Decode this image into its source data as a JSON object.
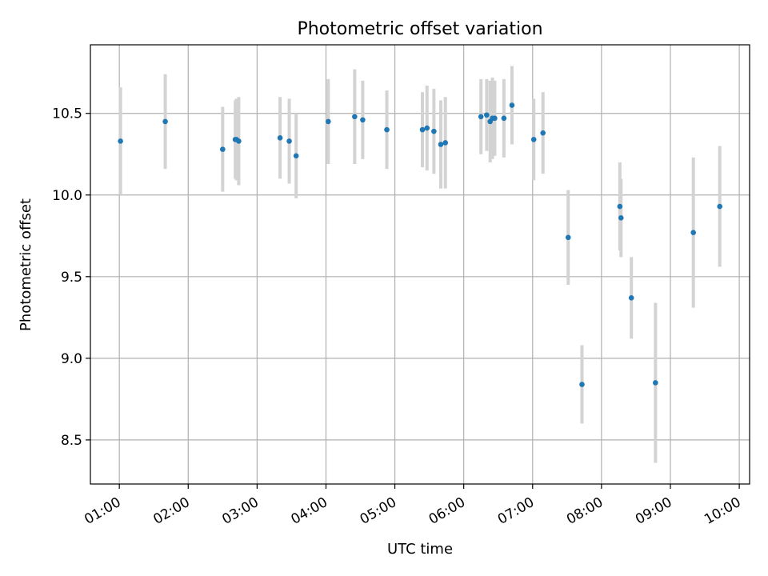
{
  "chart_data": {
    "type": "scatter",
    "title": "Photometric offset variation",
    "xlabel": "UTC time",
    "ylabel": "Photometric offset",
    "x_ticks": [
      "01:00",
      "02:00",
      "03:00",
      "04:00",
      "05:00",
      "06:00",
      "07:00",
      "08:00",
      "09:00",
      "10:00"
    ],
    "x_tick_hours": [
      1,
      2,
      3,
      4,
      5,
      6,
      7,
      8,
      9,
      10
    ],
    "xlim_hours": [
      0.58,
      10.15
    ],
    "y_ticks": [
      "8.5",
      "9.0",
      "9.5",
      "10.0",
      "10.5"
    ],
    "y_tick_values": [
      8.5,
      9.0,
      9.5,
      10.0,
      10.5
    ],
    "ylim": [
      8.23,
      10.92
    ],
    "grid": true,
    "colors": {
      "point": "#1f77b4",
      "errorbar": "#d3d3d3"
    },
    "points": [
      {
        "x": "01:01",
        "y": 10.33,
        "err": 0.33
      },
      {
        "x": "01:40",
        "y": 10.45,
        "err": 0.29
      },
      {
        "x": "02:30",
        "y": 10.28,
        "err": 0.26
      },
      {
        "x": "02:41",
        "y": 10.34,
        "err": 0.24
      },
      {
        "x": "02:42",
        "y": 10.34,
        "err": 0.25
      },
      {
        "x": "02:44",
        "y": 10.33,
        "err": 0.27
      },
      {
        "x": "03:20",
        "y": 10.35,
        "err": 0.25
      },
      {
        "x": "03:28",
        "y": 10.33,
        "err": 0.26
      },
      {
        "x": "03:34",
        "y": 10.24,
        "err": 0.26
      },
      {
        "x": "04:02",
        "y": 10.45,
        "err": 0.26
      },
      {
        "x": "04:25",
        "y": 10.48,
        "err": 0.29
      },
      {
        "x": "04:32",
        "y": 10.46,
        "err": 0.24
      },
      {
        "x": "04:53",
        "y": 10.4,
        "err": 0.24
      },
      {
        "x": "05:24",
        "y": 10.4,
        "err": 0.23
      },
      {
        "x": "05:28",
        "y": 10.41,
        "err": 0.26
      },
      {
        "x": "05:34",
        "y": 10.39,
        "err": 0.26
      },
      {
        "x": "05:40",
        "y": 10.31,
        "err": 0.27
      },
      {
        "x": "05:44",
        "y": 10.32,
        "err": 0.28
      },
      {
        "x": "06:15",
        "y": 10.48,
        "err": 0.23
      },
      {
        "x": "06:20",
        "y": 10.49,
        "err": 0.22
      },
      {
        "x": "06:23",
        "y": 10.45,
        "err": 0.25
      },
      {
        "x": "06:25",
        "y": 10.47,
        "err": 0.25
      },
      {
        "x": "06:27",
        "y": 10.47,
        "err": 0.23
      },
      {
        "x": "06:35",
        "y": 10.47,
        "err": 0.24
      },
      {
        "x": "06:42",
        "y": 10.55,
        "err": 0.24
      },
      {
        "x": "07:01",
        "y": 10.34,
        "err": 0.25
      },
      {
        "x": "07:09",
        "y": 10.38,
        "err": 0.25
      },
      {
        "x": "07:31",
        "y": 9.74,
        "err": 0.29
      },
      {
        "x": "07:43",
        "y": 8.84,
        "err": 0.24
      },
      {
        "x": "08:16",
        "y": 9.93,
        "err": 0.27
      },
      {
        "x": "08:17",
        "y": 9.86,
        "err": 0.24
      },
      {
        "x": "08:26",
        "y": 9.37,
        "err": 0.25
      },
      {
        "x": "08:47",
        "y": 8.85,
        "err": 0.49
      },
      {
        "x": "09:20",
        "y": 9.77,
        "err": 0.46
      },
      {
        "x": "09:43",
        "y": 9.93,
        "err": 0.37
      }
    ]
  }
}
